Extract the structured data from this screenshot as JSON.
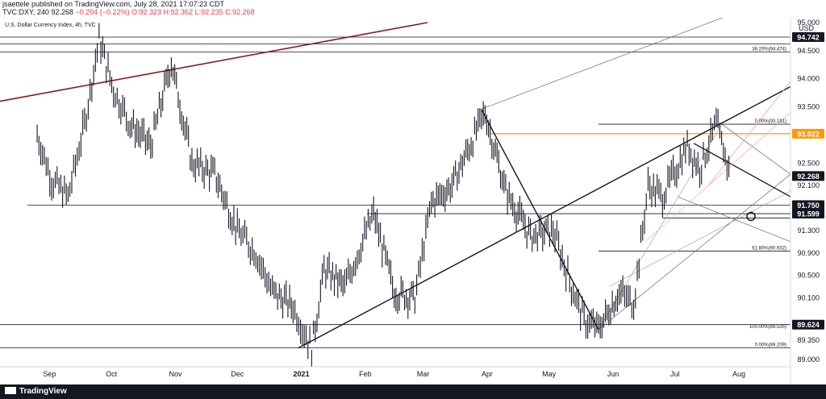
{
  "header": {
    "author_line": "jsaettele published on TradingView.com, July 28, 2021 17:07:23 CDT",
    "symbol": "TVC:DXY, 240",
    "price": "92.268",
    "change": "−0.204 (−0.22%)",
    "ohlc": "O:92.323 H:92.362 L:92.235 C:92.268"
  },
  "chart_title": "U.S. Dollar Currency Index, 4h, TVC",
  "currency": "USD",
  "footer_brand": "TradingView",
  "chart_data": {
    "type": "line",
    "title": "U.S. Dollar Currency Index, 4h, TVC",
    "ylim": [
      88.9,
      95.1
    ],
    "y_ticks": [
      89.0,
      89.35,
      89.624,
      90.1,
      90.5,
      90.9,
      91.3,
      91.599,
      91.75,
      92.1,
      92.268,
      92.5,
      93.022,
      93.5,
      94.0,
      94.5,
      94.742,
      95.0
    ],
    "x_labels": [
      "Sep",
      "Oct",
      "Nov",
      "Dec",
      "2021",
      "Feb",
      "Mar",
      "Apr",
      "May",
      "Jun",
      "Jul",
      "Aug"
    ],
    "series": [
      {
        "x": [
          "2020-08-26",
          "2020-09-02",
          "2020-09-10",
          "2020-09-18",
          "2020-09-25",
          "2020-10-02",
          "2020-10-10",
          "2020-10-20",
          "2020-10-30",
          "2020-11-09",
          "2020-11-20",
          "2020-12-01",
          "2020-12-10",
          "2020-12-18",
          "2020-12-28",
          "2021-01-06",
          "2021-01-12",
          "2021-01-22",
          "2021-02-05",
          "2021-02-15",
          "2021-02-25",
          "2021-03-05",
          "2021-03-15",
          "2021-03-31",
          "2021-04-10",
          "2021-04-22",
          "2021-05-03",
          "2021-05-11",
          "2021-05-18",
          "2021-05-25",
          "2021-06-04",
          "2021-06-11",
          "2021-06-18",
          "2021-06-25",
          "2021-07-07",
          "2021-07-13",
          "2021-07-21",
          "2021-07-28"
        ],
        "values": [
          93.0,
          92.2,
          91.9,
          93.2,
          94.7,
          93.8,
          93.2,
          92.8,
          94.3,
          92.5,
          92.3,
          91.3,
          90.9,
          90.2,
          89.95,
          89.2,
          90.6,
          90.3,
          91.6,
          90.2,
          90.1,
          91.8,
          92.1,
          93.4,
          92.0,
          91.2,
          91.3,
          90.4,
          89.7,
          89.55,
          90.2,
          90.0,
          92.1,
          91.9,
          92.8,
          92.4,
          93.19,
          92.268
        ]
      }
    ],
    "price_tags": [
      {
        "label": "94.742",
        "value": 94.742,
        "bg": "#131722",
        "fg": "#ffffff"
      },
      {
        "label": "93.022",
        "value": 93.022,
        "bg": "#ff9800",
        "fg": "#ffffff"
      },
      {
        "label": "92.268",
        "value": 92.268,
        "bg": "#131722",
        "fg": "#ffffff"
      },
      {
        "label": "91.750",
        "value": 91.75,
        "bg": "#131722",
        "fg": "#ffffff"
      },
      {
        "label": "91.599",
        "value": 91.599,
        "bg": "#131722",
        "fg": "#ffffff"
      },
      {
        "label": "89.624",
        "value": 89.624,
        "bg": "#131722",
        "fg": "#ffffff"
      }
    ],
    "fib_labels": [
      {
        "label": "38.20%(94.474)",
        "value": 94.474
      },
      {
        "label": "0.00%(93.191)",
        "value": 93.191
      },
      {
        "label": "61.80%(90.932)",
        "value": 90.932
      },
      {
        "label": "100.00%(89.535)",
        "value": 89.535
      },
      {
        "label": "0.00%(89.209)",
        "value": 89.209
      }
    ],
    "colors": {
      "trendline": "#8b1a1a",
      "orange": "#ff9800",
      "pink": "#f7a1a8",
      "price": "#131722"
    }
  }
}
